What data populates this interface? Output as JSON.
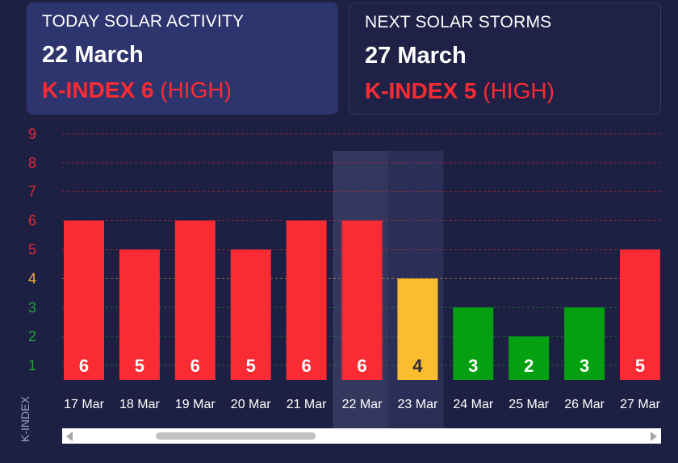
{
  "today": {
    "label": "TODAY SOLAR ACTIVITY",
    "date": "22 March",
    "k_label": "K-INDEX 6",
    "level": "(HIGH)"
  },
  "next": {
    "label": "NEXT SOLAR STORMS",
    "date": "27 March",
    "k_label": "K-INDEX 5",
    "level": "(HIGH)"
  },
  "colors": {
    "high": "#fb2b33",
    "moderate": "#fbbd2e",
    "low": "#04a012",
    "tick_red": "#e0282f",
    "tick_yellow": "#f2b834",
    "tick_green": "#1fa531"
  },
  "chart_data": {
    "type": "bar",
    "ylabel": "K-INDEX",
    "categories": [
      "17 Mar",
      "18 Mar",
      "19 Mar",
      "20 Mar",
      "21 Mar",
      "22 Mar",
      "23 Mar",
      "24 Mar",
      "25 Mar",
      "26 Mar",
      "27 Mar"
    ],
    "values": [
      6,
      5,
      6,
      5,
      6,
      6,
      4,
      3,
      2,
      3,
      5
    ],
    "yticks": [
      1,
      2,
      3,
      4,
      5,
      6,
      7,
      8,
      9
    ],
    "ylim": [
      0.5,
      9
    ],
    "highlighted_category": "22 Mar",
    "grid": true
  }
}
